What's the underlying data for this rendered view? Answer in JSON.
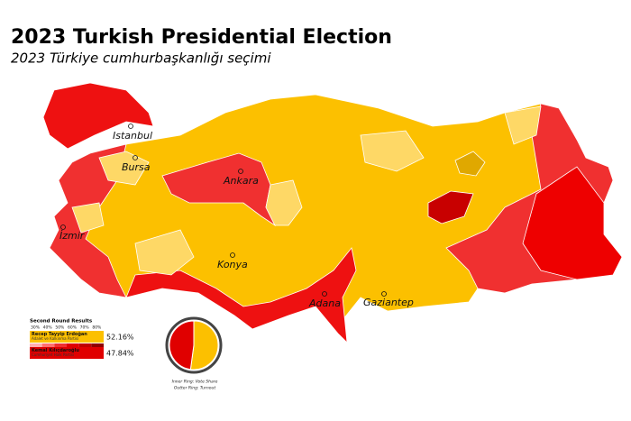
{
  "header": {
    "title": "2023 Turkish Presidential Election",
    "subtitle": "2023 Türkiye cumhurbaşkanlığı seçimi"
  },
  "cities": [
    "Istanbul",
    "Bursa",
    "Ankara",
    "İzmir",
    "Konya",
    "Adana",
    "Gaziantep"
  ],
  "legend": {
    "title": "Second Round Results",
    "scale": [
      "30%",
      "40%",
      "50%",
      "60%",
      "70%",
      "80%"
    ],
    "results": [
      {
        "candidate": "Recep Tayyip Erdoğan",
        "party": "Adalet ve Kalkınma Partisi",
        "share": 52.16,
        "label": "52.16%",
        "color": "#fcc000"
      },
      {
        "candidate": "Kemal Kılıçdaroğlu",
        "party": "Cumhuriyet Halk Partisi",
        "share": 47.84,
        "label": "47.84%",
        "color": "#e00000"
      }
    ]
  },
  "pie_notes": [
    "Inner Ring: Vote Share",
    "Outter Ring: Turnout"
  ]
}
